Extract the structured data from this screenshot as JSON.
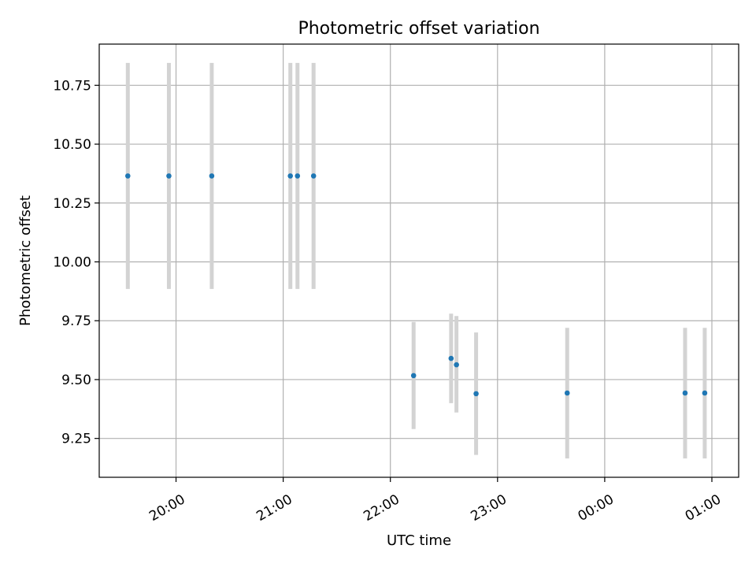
{
  "chart_data": {
    "type": "scatter",
    "title": "Photometric offset variation",
    "xlabel": "UTC time",
    "ylabel": "Photometric offset",
    "x_unit": "UTC time (HH:MM)",
    "xlim": [
      "19:17",
      "01:15"
    ],
    "ylim": [
      9.085,
      10.925
    ],
    "x_ticks": [
      "20:00",
      "21:00",
      "22:00",
      "23:00",
      "00:00",
      "01:00"
    ],
    "y_ticks": [
      9.25,
      9.5,
      9.75,
      10.0,
      10.25,
      10.5,
      10.75
    ],
    "y_tick_labels": [
      "9.25",
      "9.50",
      "9.75",
      "10.00",
      "10.25",
      "10.50",
      "10.75"
    ],
    "grid": true,
    "legend": "none",
    "colors": {
      "point": "#1f77b4",
      "errorbar": "#d3d3d3",
      "grid": "#b0b0b0"
    },
    "series": [
      {
        "points": [
          {
            "x": "19:33",
            "y": 10.365,
            "low": 9.885,
            "high": 10.845
          },
          {
            "x": "19:56",
            "y": 10.365,
            "low": 9.885,
            "high": 10.845
          },
          {
            "x": "20:20",
            "y": 10.365,
            "low": 9.885,
            "high": 10.845
          },
          {
            "x": "21:04",
            "y": 10.365,
            "low": 9.885,
            "high": 10.845
          },
          {
            "x": "21:08",
            "y": 10.365,
            "low": 9.885,
            "high": 10.845
          },
          {
            "x": "21:17",
            "y": 10.365,
            "low": 9.885,
            "high": 10.845
          },
          {
            "x": "22:13",
            "y": 9.517,
            "low": 9.29,
            "high": 9.745
          },
          {
            "x": "22:34",
            "y": 9.59,
            "low": 9.4,
            "high": 9.78
          },
          {
            "x": "22:37",
            "y": 9.563,
            "low": 9.36,
            "high": 9.77
          },
          {
            "x": "22:48",
            "y": 9.44,
            "low": 9.18,
            "high": 9.7
          },
          {
            "x": "23:39",
            "y": 9.443,
            "low": 9.165,
            "high": 9.72
          },
          {
            "x": "00:45",
            "y": 9.443,
            "low": 9.165,
            "high": 9.72
          },
          {
            "x": "00:56",
            "y": 9.443,
            "low": 9.165,
            "high": 9.72
          }
        ]
      }
    ]
  }
}
